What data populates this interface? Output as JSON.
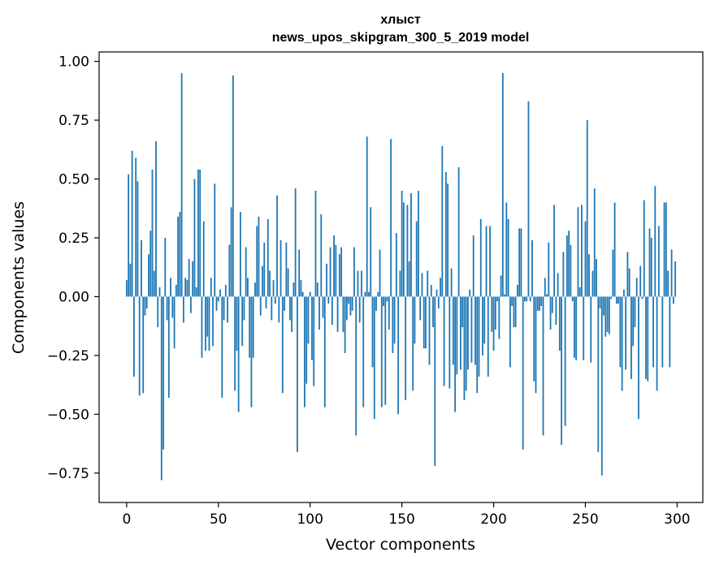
{
  "chart_data": {
    "type": "bar",
    "title": "хлыст",
    "subtitle": "news_upos_skipgram_300_5_2019 model",
    "xlabel": "Vector components",
    "ylabel": "Components values",
    "xlim": [
      -15,
      314
    ],
    "ylim": [
      -0.875,
      1.04
    ],
    "xticks": [
      0,
      50,
      100,
      150,
      200,
      250,
      300
    ],
    "xtick_labels": [
      "0",
      "50",
      "100",
      "150",
      "200",
      "250",
      "300"
    ],
    "yticks": [
      -0.75,
      -0.5,
      -0.25,
      0.0,
      0.25,
      0.5,
      0.75,
      1.0
    ],
    "ytick_labels": [
      "−0.75",
      "−0.50",
      "−0.25",
      "0.00",
      "0.25",
      "0.50",
      "0.75",
      "1.00"
    ],
    "bar_color": "#1f77b4",
    "x": "0..299 (component index)",
    "values": [
      0.07,
      0.52,
      0.14,
      0.62,
      -0.34,
      0.59,
      0.49,
      -0.42,
      0.24,
      -0.41,
      -0.08,
      -0.05,
      0.18,
      0.28,
      0.54,
      0.11,
      0.66,
      -0.13,
      0.04,
      -0.78,
      -0.65,
      0.25,
      -0.1,
      -0.43,
      0.08,
      -0.09,
      -0.22,
      0.05,
      0.34,
      0.36,
      0.95,
      -0.11,
      0.08,
      0.07,
      0.16,
      -0.07,
      0.15,
      0.5,
      0.04,
      0.54,
      0.54,
      -0.26,
      0.32,
      -0.23,
      -0.17,
      -0.23,
      0.08,
      -0.21,
      0.48,
      -0.06,
      -0.02,
      0.03,
      -0.43,
      -0.1,
      0.05,
      -0.11,
      0.22,
      0.38,
      0.94,
      -0.4,
      -0.23,
      -0.49,
      0.36,
      -0.21,
      -0.1,
      0.21,
      0.08,
      -0.26,
      -0.47,
      -0.26,
      0.06,
      0.3,
      0.34,
      -0.08,
      0.13,
      0.23,
      -0.05,
      0.33,
      0.11,
      -0.1,
      0.07,
      -0.03,
      0.43,
      -0.11,
      0.24,
      -0.41,
      -0.06,
      0.23,
      0.12,
      -0.1,
      -0.15,
      0.06,
      0.46,
      -0.66,
      0.2,
      0.07,
      0.02,
      -0.47,
      -0.37,
      -0.2,
      0.02,
      -0.27,
      -0.38,
      0.45,
      0.06,
      -0.14,
      0.35,
      -0.09,
      -0.47,
      0.14,
      -0.03,
      0.21,
      -0.12,
      0.26,
      0.22,
      -0.15,
      0.18,
      0.21,
      -0.15,
      -0.24,
      -0.1,
      -0.03,
      -0.08,
      -0.06,
      0.21,
      -0.59,
      0.11,
      -0.11,
      0.11,
      -0.47,
      0.02,
      0.68,
      0.02,
      0.38,
      -0.3,
      -0.52,
      -0.06,
      0.02,
      0.2,
      -0.47,
      -0.04,
      -0.46,
      -0.02,
      -0.14,
      0.67,
      -0.24,
      -0.2,
      0.27,
      -0.5,
      0.11,
      0.45,
      0.4,
      -0.44,
      0.39,
      0.15,
      0.44,
      -0.4,
      -0.2,
      0.32,
      0.45,
      -0.1,
      0.1,
      -0.22,
      -0.22,
      0.11,
      -0.29,
      0.05,
      -0.13,
      -0.72,
      0.03,
      -0.05,
      0.08,
      0.64,
      -0.38,
      0.53,
      0.48,
      -0.39,
      0.12,
      -0.29,
      -0.49,
      -0.33,
      0.55,
      -0.31,
      -0.13,
      -0.44,
      -0.4,
      -0.31,
      0.03,
      -0.28,
      0.26,
      -0.29,
      -0.41,
      -0.34,
      0.33,
      -0.25,
      -0.2,
      0.3,
      -0.34,
      0.3,
      -0.15,
      -0.23,
      -0.14,
      -0.02,
      -0.18,
      0.09,
      0.95,
      0.01,
      0.4,
      0.33,
      -0.3,
      -0.04,
      -0.13,
      -0.13,
      0.05,
      0.29,
      0.29,
      -0.65,
      -0.02,
      -0.02,
      0.83,
      -0.02,
      0.24,
      -0.36,
      -0.41,
      -0.06,
      -0.06,
      -0.04,
      -0.59,
      0.08,
      0.01,
      0.23,
      -0.14,
      -0.07,
      0.39,
      -0.12,
      0.1,
      -0.23,
      -0.63,
      0.19,
      -0.55,
      0.26,
      0.28,
      0.22,
      -0.02,
      -0.26,
      -0.27,
      0.38,
      0.04,
      0.39,
      -0.27,
      0.32,
      0.75,
      0.18,
      -0.28,
      0.11,
      0.46,
      0.16,
      -0.66,
      -0.05,
      -0.76,
      -0.08,
      -0.17,
      -0.15,
      -0.16,
      -0.01,
      0.2,
      0.4,
      -0.03,
      -0.03,
      -0.3,
      -0.4,
      0.03,
      -0.31,
      0.19,
      0.12,
      -0.35,
      -0.21,
      -0.13,
      0.08,
      -0.52,
      0.13,
      -0.01,
      0.41,
      -0.35,
      -0.36,
      0.29,
      0.25,
      -0.3,
      0.47,
      -0.4,
      0.3,
      0.0,
      -0.3,
      0.4,
      0.4,
      0.11,
      -0.3,
      0.2,
      -0.03,
      0.15
    ]
  }
}
